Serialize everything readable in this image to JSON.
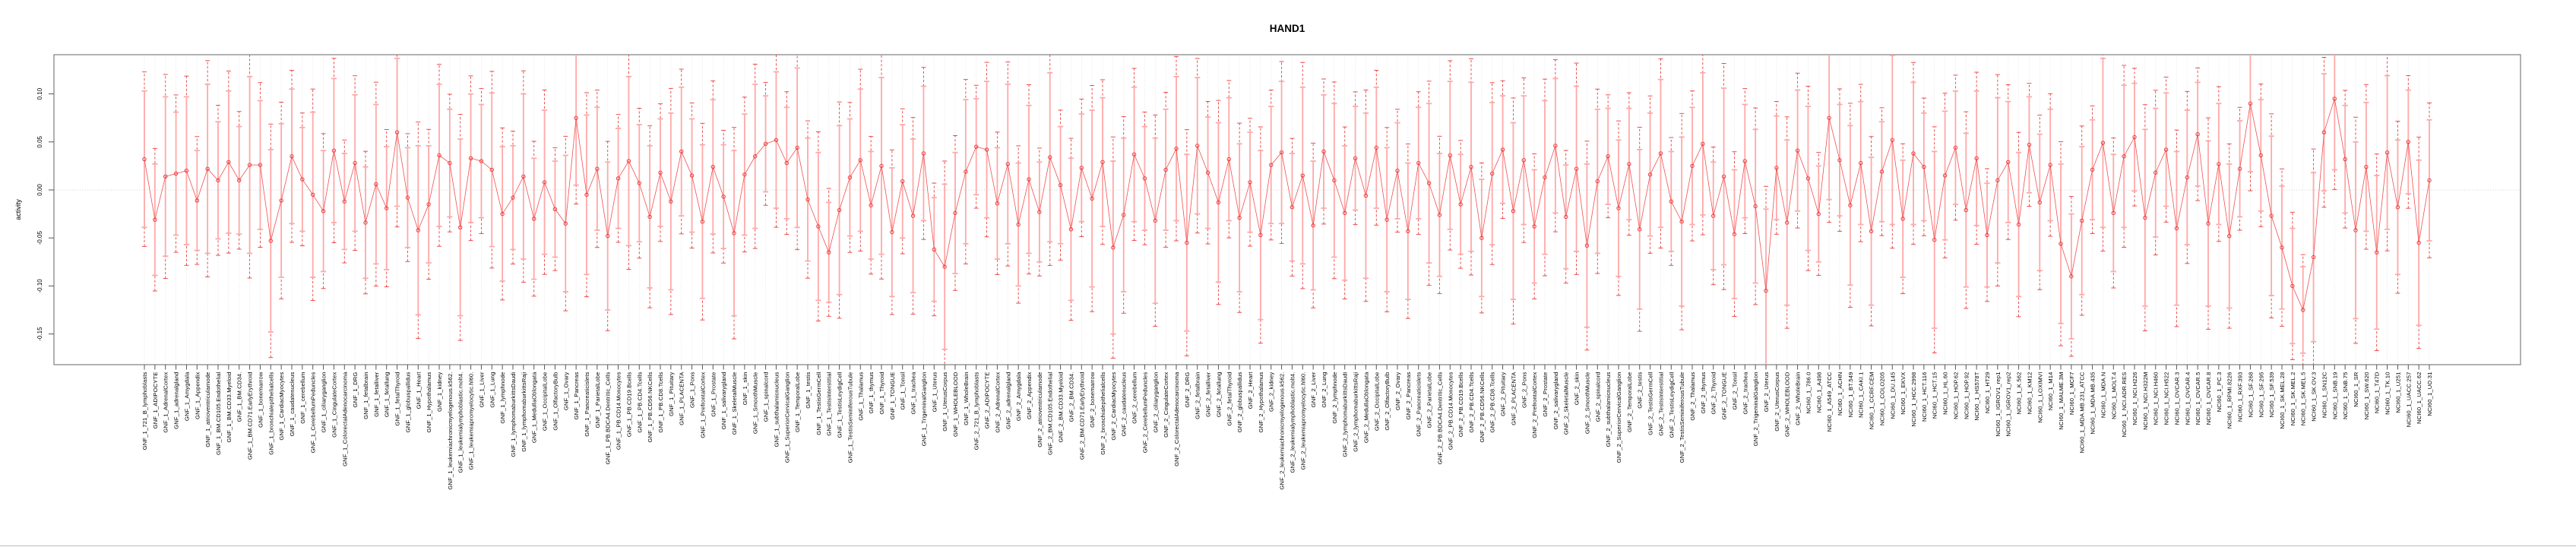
{
  "title": "HAND1",
  "colors": {
    "point_red": "#ee3b3b",
    "line_red": "#f05050",
    "bar_pink": "#ffa8a8",
    "grid": "#dcdcdc",
    "zero_line": "#c0c0c0",
    "box": "#888888",
    "tick": "#555555",
    "bottom_rule": "#c4c4c4",
    "background": "#ffffff",
    "text": "#000000"
  },
  "chart_data": {
    "type": "line",
    "title": "HAND1",
    "xlabel": "",
    "ylabel": "activity",
    "ylim": [
      -0.182,
      0.141
    ],
    "yticks": [
      0.1,
      0.05,
      0.0,
      -0.05,
      -0.1,
      -0.15
    ],
    "ytick_labels": [
      "0.10",
      "0.05",
      "0.00",
      "-0.05",
      "-0.10",
      "-0.15"
    ],
    "grid": "dotted vertical line per category, dotted horizontal line at 0",
    "legend_position": "none",
    "marker": "open-circle with salmon error bar (caps) and red dashed outer interval",
    "err_outer_factor": 1.28,
    "categories": [
      "GNF_1_721_B_lymphoblasts",
      "GNF_1_ADIPOCYTE",
      "GNF_1_AdrenalCortex",
      "GNF_1_adrenalgland",
      "GNF_1_Amygdala",
      "GNF_1_Appendix",
      "GNF_1_atrioventricularnode",
      "GNF_1_BM.CD105.Endothelial",
      "GNF_1_BM.CD33.Myeloid",
      "GNF_1_BM.CD34.",
      "GNF_1_BM.CD71.EarlyErythroid",
      "GNF_1_bonemarrow",
      "GNF_1_bronchialepithelialcells",
      "GNF_1_CardiacMyocytes",
      "GNF_1_caudatenucleus",
      "GNF_1_cerebellum",
      "GNF_1_CerebellumPeduncles",
      "GNF_1_ciliaryganglion",
      "GNF_1_CingulateCortex",
      "GNF_1_ColorectalAdenocarcinoma",
      "GNF_1_DRG",
      "GNF_1_fetalbrain",
      "GNF_1_fetalliver",
      "GNF_1_fetallung",
      "GNF_1_fetalThyroid",
      "GNF_1_globuspallidus",
      "GNF_1_Heart",
      "GNF_1_Hypothalamus",
      "GNF_1_kidney",
      "GNF_1_leukemiachronicmyelogenous.k562.",
      "GNF_1_leukemialymphoblastic.molt4.",
      "GNF_1_leukemiapromyelocytic.hl60.",
      "GNF_1_Liver",
      "GNF_1_Lung",
      "GNF_1_lymphnode",
      "GNF_1_lymphomaburkittsDaudi",
      "GNF_1_lymphomaburkittsRaji",
      "GNF_1_MedullaOblongata",
      "GNF_1_OccipitalLobe",
      "GNF_1_OlfactoryBulb",
      "GNF_1_Ovary",
      "GNF_1_Pancreas",
      "GNF_1_Pancreaticislets",
      "GNF_1_ParietalLobe",
      "GNF_1_PB.BDCA4.Dentritic_Cells",
      "GNF_1_PB.CD14.Monocytes",
      "GNF_1_PB.CD19.Bcells",
      "GNF_1_PB.CD4.Tcells",
      "GNF_1_PB.CD56.NKCells",
      "GNF_1_PB.CD8.Tcells",
      "GNF_1_Pituitary",
      "GNF_1_PLACENTA",
      "GNF_1_Pons",
      "GNF_1_PrefrontalCortex",
      "GNF_1_Prostate",
      "GNF_1_salivarygland",
      "GNF_1_SkeletalMuscle",
      "GNF_1_skin",
      "GNF_1_SmoothMuscle",
      "GNF_1_spinalcord",
      "GNF_1_subthalamicnucleus",
      "GNF_1_SuperiorCervicalGanglion",
      "GNF_1_TemporalLobe",
      "GNF_1_testis",
      "GNF_1_TestisGermCell",
      "GNF_1_TestisInterstitial",
      "GNF_1_TestisLeydigCell",
      "GNF_1_TestisSeminiferousTubule",
      "GNF_1_Thalamus",
      "GNF_1_thymus",
      "GNF_1_Thyroid",
      "GNF_1_TONGUE",
      "GNF_1_Tonsil",
      "GNF_1_trachea",
      "GNF_1_TrigeminalGanglion",
      "GNF_1_Uterus",
      "GNF_1_UterusCorpus",
      "GNF_1_WHOLEBLOOD",
      "GNF_1_WholeBrain",
      "GNF_2_721_B_lymphoblasts",
      "GNF_2_ADIPOCYTE",
      "GNF_2_AdrenalCortex",
      "GNF_2_adrenalgland",
      "GNF_2_Amygdala",
      "GNF_2_Appendix",
      "GNF_2_atrioventricularnode",
      "GNF_2_BM.CD105.Endothelial",
      "GNF_2_BM.CD33.Myeloid",
      "GNF_2_BM.CD34.",
      "GNF_2_BM.CD71.EarlyErythroid",
      "GNF_2_bonemarrow",
      "GNF_2_bronchialepithelialcells",
      "GNF_2_CardiacMyocytes",
      "GNF_2_caudatenucleus",
      "GNF_2_cerebellum",
      "GNF_2_CerebellumPeduncles",
      "GNF_2_ciliaryganglion",
      "GNF_2_CingulateCortex",
      "GNF_2_ColorectalAdenocarcinoma",
      "GNF_2_DRG",
      "GNF_2_fetalbrain",
      "GNF_2_fetalliver",
      "GNF_2_fetallung",
      "GNF_2_fetalThyroid",
      "GNF_2_globuspallidus",
      "GNF_2_Heart",
      "GNF_2_Hypothalamus",
      "GNF_2_kidney",
      "GNF_2_leukemiachronicmyelogenous.k562.",
      "GNF_2_leukemialymphoblastic.molt4.",
      "GNF_2_leukemiapromyelocytic.hl60.",
      "GNF_2_Liver",
      "GNF_2_Lung",
      "GNF_2_lymphnode",
      "GNF_2_lymphomaburkittsDaudi",
      "GNF_2_lymphomaburkittsRaji",
      "GNF_2_MedullaOblongata",
      "GNF_2_OccipitalLobe",
      "GNF_2_OlfactoryBulb",
      "GNF_2_Ovary",
      "GNF_2_Pancreas",
      "GNF_2_Pancreaticislets",
      "GNF_2_ParietalLobe",
      "GNF_2_PB.BDCA4.Dentritic_Cells",
      "GNF_2_PB.CD14.Monocytes",
      "GNF_2_PB.CD19.Bcells",
      "GNF_2_PB.CD4.Tcells",
      "GNF_2_PB.CD56.NKCells",
      "GNF_2_PB.CD8.Tcells",
      "GNF_2_Pituitary",
      "GNF_2_PLACENTA",
      "GNF_2_Pons",
      "GNF_2_PrefrontalCortex",
      "GNF_2_Prostate",
      "GNF_2_salivarygland",
      "GNF_2_SkeletalMuscle",
      "GNF_2_skin",
      "GNF_2_SmoothMuscle",
      "GNF_2_spinalcord",
      "GNF_2_subthalamicnucleus",
      "GNF_2_SuperiorCervicalGanglion",
      "GNF_2_TemporalLobe",
      "GNF_2_testis",
      "GNF_2_TestisGermCell",
      "GNF_2_TestisInterstitial",
      "GNF_2_TestisLeydigCell",
      "GNF_2_TestisSeminiferousTubule",
      "GNF_2_Thalamus",
      "GNF_2_thymus",
      "GNF_2_Thyroid",
      "GNF_2_TONGUE",
      "GNF_2_Tonsil",
      "GNF_2_trachea",
      "GNF_2_TrigeminalGanglion",
      "GNF_2_Uterus",
      "GNF_2_UterusCorpus",
      "GNF_2_WHOLEBLOOD",
      "GNF_2_WholeBrain",
      "NCI60_1_786.0",
      "NCI60_1_A498",
      "NCI60_1_A549_ATCC",
      "NCI60_1_ACHN",
      "NCI60_1_BT.549",
      "NCI60_1_CAKI.1",
      "NCI60_1_CCRF.CEM",
      "NCI60_1_COLO205",
      "NCI60_1_DU.145",
      "NCI60_1_EKVX",
      "NCI60_1_HCC.2998",
      "NCI60_1_HCT.116",
      "NCI60_1_HCT.15",
      "NCI60_1_HL.60",
      "NCI60_1_HOP.62",
      "NCI60_1_HOP.92",
      "NCI60_1_HS578T",
      "NCI60_1_HT29",
      "NCI60_1_IGROV1_rep1",
      "NCI60_1_IGROV1_rep2",
      "NCI60_1_K.562",
      "NCI60_1_KM12",
      "NCI60_1_LOXIMVI",
      "NCI60_1_M14",
      "NCI60_1_MALME.3M",
      "NCI60_1_MCF7",
      "NCI60_1_MDA.MB.231_ATCC",
      "NCI60_1_MDA.MB.435",
      "NCI60_1_MDA.N",
      "NCI60_1_MOLT.4",
      "NCI60_1_NCI.ADR.RES",
      "NCI60_1_NCI.H226",
      "NCI60_1_NCI.H322M",
      "NCI60_1_NCI.H460",
      "NCI60_1_NCI.H522",
      "NCI60_1_OVCAR.3",
      "NCI60_1_OVCAR.4",
      "NCI60_1_OVCAR.5",
      "NCI60_1_OVCAR.8",
      "NCI60_1_PC.3",
      "NCI60_1_RPMI.8226",
      "NCI60_1_RXF.393",
      "NCI60_1_SF.268",
      "NCI60_1_SF.295",
      "NCI60_1_SF.539",
      "NCI60_1_SK.MEL.28",
      "NCI60_1_SK.MEL.2",
      "NCI60_1_SK.MEL.5",
      "NCI60_1_SK.OV.3",
      "NCI60_1_SN12C",
      "NCI60_1_SNB.19",
      "NCI60_1_SNB.75",
      "NCI60_1_SR",
      "NCI60_1_SW.620",
      "NCI60_1_T47D",
      "NCI60_1_TK.10",
      "NCI60_1_U251",
      "NCI60_1_UACC.257",
      "NCI60_1_UACC.62",
      "NCI60_1_UO.31"
    ],
    "values": [
      0.032,
      -0.031,
      0.014,
      0.017,
      0.02,
      -0.011,
      0.022,
      0.01,
      0.029,
      0.01,
      0.026,
      0.026,
      -0.053,
      -0.011,
      0.035,
      0.011,
      -0.005,
      -0.022,
      0.041,
      -0.012,
      0.028,
      -0.034,
      0.006,
      -0.019,
      0.06,
      -0.008,
      -0.042,
      -0.015,
      0.036,
      0.028,
      -0.039,
      0.033,
      0.03,
      0.021,
      -0.025,
      -0.008,
      0.014,
      -0.03,
      0.008,
      -0.02,
      -0.035,
      0.075,
      -0.005,
      0.022,
      -0.048,
      0.012,
      0.03,
      0.007,
      -0.028,
      0.018,
      -0.012,
      0.04,
      0.015,
      -0.033,
      0.024,
      -0.007,
      -0.045,
      0.016,
      0.035,
      0.048,
      0.052,
      0.028,
      0.044,
      -0.01,
      -0.038,
      -0.065,
      -0.021,
      0.013,
      0.031,
      -0.016,
      0.025,
      -0.044,
      0.009,
      -0.027,
      0.038,
      -0.062,
      -0.08,
      -0.024,
      0.019,
      0.045,
      0.042,
      -0.014,
      0.027,
      -0.036,
      0.011,
      -0.023,
      0.034,
      0.005,
      -0.041,
      0.023,
      -0.009,
      0.029,
      -0.06,
      -0.026,
      0.037,
      0.012,
      -0.032,
      0.021,
      0.043,
      -0.055,
      0.046,
      0.018,
      -0.013,
      0.032,
      -0.029,
      0.008,
      -0.047,
      0.026,
      0.039,
      -0.018,
      0.015,
      -0.037,
      0.04,
      0.01,
      -0.024,
      0.033,
      -0.006,
      0.044,
      -0.031,
      0.02,
      -0.043,
      0.028,
      0.007,
      -0.026,
      0.036,
      -0.015,
      0.024,
      -0.05,
      0.017,
      0.042,
      -0.022,
      0.031,
      -0.038,
      0.013,
      0.046,
      -0.028,
      0.022,
      -0.058,
      0.009,
      0.035,
      -0.019,
      0.027,
      -0.041,
      0.016,
      0.038,
      -0.012,
      -0.033,
      0.025,
      0.048,
      -0.027,
      0.014,
      -0.046,
      0.03,
      -0.017,
      -0.105,
      0.023,
      -0.034,
      0.041,
      0.012,
      -0.025,
      0.075,
      0.031,
      -0.016,
      0.028,
      -0.043,
      0.019,
      0.052,
      -0.03,
      0.038,
      0.024,
      -0.052,
      0.015,
      0.044,
      -0.021,
      0.033,
      -0.047,
      0.01,
      0.029,
      -0.036,
      0.047,
      -0.013,
      0.026,
      -0.056,
      -0.09,
      -0.032,
      0.021,
      0.049,
      -0.024,
      0.035,
      0.055,
      -0.029,
      0.018,
      0.042,
      -0.04,
      0.013,
      0.058,
      -0.035,
      0.027,
      -0.048,
      0.022,
      0.09,
      0.036,
      -0.027,
      -0.06,
      -0.1,
      -0.125,
      -0.07,
      0.06,
      0.095,
      0.032,
      -0.042,
      0.024,
      -0.065,
      0.039,
      -0.018,
      0.05,
      -0.055,
      0.01
    ],
    "errors": [
      0.071,
      0.058,
      0.083,
      0.064,
      0.077,
      0.052,
      0.088,
      0.061,
      0.074,
      0.056,
      0.092,
      0.067,
      0.095,
      0.08,
      0.07,
      0.054,
      0.086,
      0.063,
      0.075,
      0.05,
      0.071,
      0.058,
      0.083,
      0.064,
      0.077,
      0.052,
      0.088,
      0.061,
      0.074,
      0.056,
      0.092,
      0.067,
      0.059,
      0.08,
      0.07,
      0.054,
      0.086,
      0.063,
      0.075,
      0.05,
      0.071,
      0.07,
      0.083,
      0.064,
      0.077,
      0.052,
      0.088,
      0.061,
      0.074,
      0.056,
      0.092,
      0.067,
      0.059,
      0.08,
      0.07,
      0.054,
      0.086,
      0.063,
      0.075,
      0.05,
      0.071,
      0.058,
      0.083,
      0.064,
      0.077,
      0.052,
      0.088,
      0.061,
      0.074,
      0.056,
      0.092,
      0.067,
      0.059,
      0.08,
      0.07,
      0.054,
      0.086,
      0.063,
      0.075,
      0.05,
      0.071,
      0.058,
      0.083,
      0.064,
      0.077,
      0.052,
      0.088,
      0.061,
      0.074,
      0.056,
      0.092,
      0.067,
      0.09,
      0.08,
      0.07,
      0.054,
      0.086,
      0.063,
      0.075,
      0.092,
      0.071,
      0.058,
      0.083,
      0.064,
      0.077,
      0.052,
      0.088,
      0.061,
      0.074,
      0.056,
      0.092,
      0.067,
      0.059,
      0.08,
      0.07,
      0.054,
      0.086,
      0.063,
      0.075,
      0.05,
      0.071,
      0.058,
      0.083,
      0.064,
      0.077,
      0.052,
      0.088,
      0.061,
      0.074,
      0.056,
      0.092,
      0.067,
      0.059,
      0.08,
      0.07,
      0.054,
      0.086,
      0.085,
      0.075,
      0.05,
      0.071,
      0.058,
      0.083,
      0.064,
      0.077,
      0.052,
      0.088,
      0.061,
      0.074,
      0.056,
      0.092,
      0.067,
      0.059,
      0.08,
      0.085,
      0.054,
      0.086,
      0.063,
      0.075,
      0.05,
      0.085,
      0.058,
      0.083,
      0.064,
      0.077,
      0.052,
      0.088,
      0.061,
      0.074,
      0.056,
      0.092,
      0.067,
      0.059,
      0.08,
      0.07,
      0.054,
      0.086,
      0.063,
      0.075,
      0.05,
      0.071,
      0.058,
      0.083,
      0.065,
      0.077,
      0.052,
      0.088,
      0.061,
      0.074,
      0.056,
      0.092,
      0.067,
      0.059,
      0.08,
      0.07,
      0.054,
      0.086,
      0.063,
      0.075,
      0.05,
      0.071,
      0.058,
      0.083,
      0.064,
      0.06,
      0.045,
      0.088,
      0.061,
      0.074,
      0.056,
      0.092,
      0.067,
      0.08,
      0.08,
      0.07,
      0.054,
      0.086,
      0.063
    ]
  }
}
